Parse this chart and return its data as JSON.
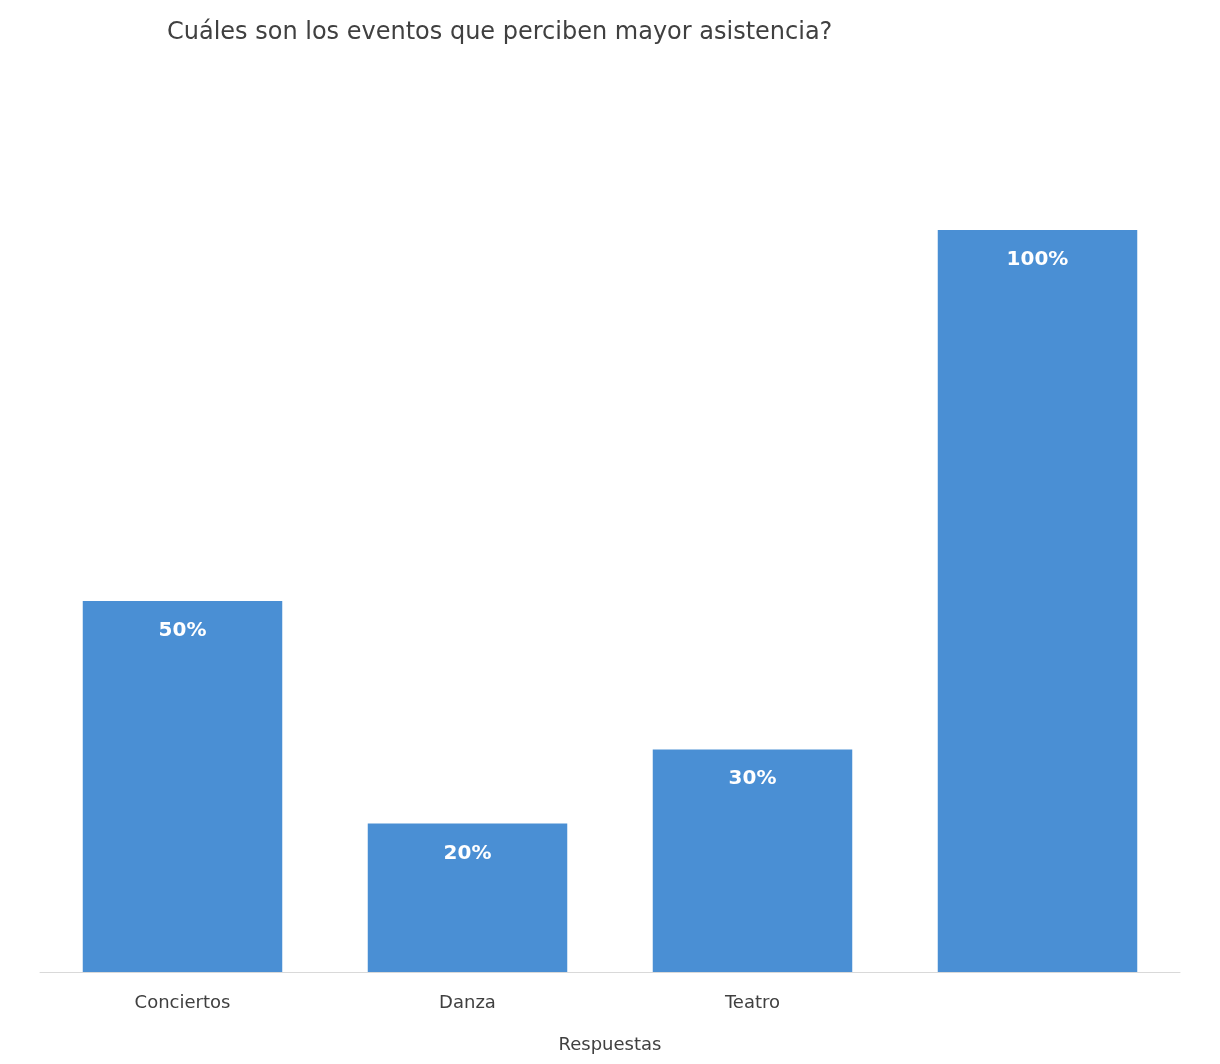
{
  "chart_data": {
    "type": "bar",
    "title": "Cuáles son los eventos que perciben mayor asistencia?",
    "xlabel": "Respuestas",
    "categories": [
      "Conciertos",
      "Danza",
      "Teatro",
      null
    ],
    "values": [
      50,
      20,
      30,
      100
    ],
    "value_labels": [
      "50%",
      "20%",
      "30%",
      "100%"
    ],
    "color": "#4a8fd4"
  }
}
